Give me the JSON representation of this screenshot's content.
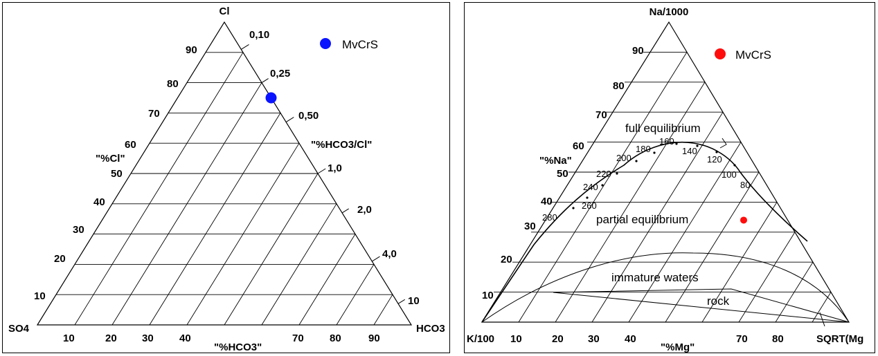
{
  "left_diagram": {
    "corner_top": "Cl",
    "corner_left": "SO4",
    "corner_right": "HCO3",
    "left_axis_label": "\"%Cl\"",
    "bottom_axis_label": "\"%HCO3\"",
    "right_axis_label": "\"%HCO3/Cl\"",
    "left_ticks": [
      "10",
      "20",
      "30",
      "40",
      "50",
      "60",
      "70",
      "80",
      "90"
    ],
    "bottom_ticks": [
      "10",
      "20",
      "30",
      "40",
      "",
      "",
      "70",
      "80",
      "90"
    ],
    "right_ticks": [
      "0,10",
      "0,25",
      "0,50",
      "1,0",
      "2,0",
      "4,0",
      "10"
    ],
    "legend_label": "MvCrS",
    "legend_color": "#0a14ff"
  },
  "right_diagram": {
    "corner_top": "Na/1000",
    "corner_left": "K/100",
    "corner_right": "SQRT(Mg",
    "left_axis_label": "\"%Na\"",
    "bottom_axis_label": "\"%Mg\"",
    "left_ticks": [
      "10",
      "20",
      "30",
      "40",
      "50",
      "60",
      "70",
      "80",
      "90"
    ],
    "bottom_ticks": [
      "10",
      "20",
      "30",
      "40",
      "",
      "",
      "70",
      "80",
      ""
    ],
    "region_labels": {
      "full": "full equilibrium",
      "partial": "partial equilibrium",
      "immature": "immature waters",
      "rock": "rock"
    },
    "temperature_labels": [
      "280",
      "260",
      "240",
      "220",
      "200",
      "180",
      "160",
      "140",
      "120",
      "100",
      "80"
    ],
    "legend_label": "MvCrS",
    "legend_color": "#ff0d0d"
  },
  "chart_data": [
    {
      "type": "scatter",
      "title": "",
      "axes": [
        "Cl",
        "SO4",
        "HCO3"
      ],
      "series": [
        {
          "name": "MvCrS",
          "points": [
            {
              "Cl": 75,
              "SO4": 0,
              "HCO3": 25
            }
          ]
        }
      ]
    },
    {
      "type": "scatter",
      "title": "",
      "axes": [
        "Na/1000",
        "K/100",
        "SQRT(Mg)"
      ],
      "series": [
        {
          "name": "MvCrS",
          "points": [
            {
              "Na/1000": 34,
              "K/100": 12,
              "SQRT(Mg)": 54
            }
          ]
        }
      ]
    }
  ]
}
